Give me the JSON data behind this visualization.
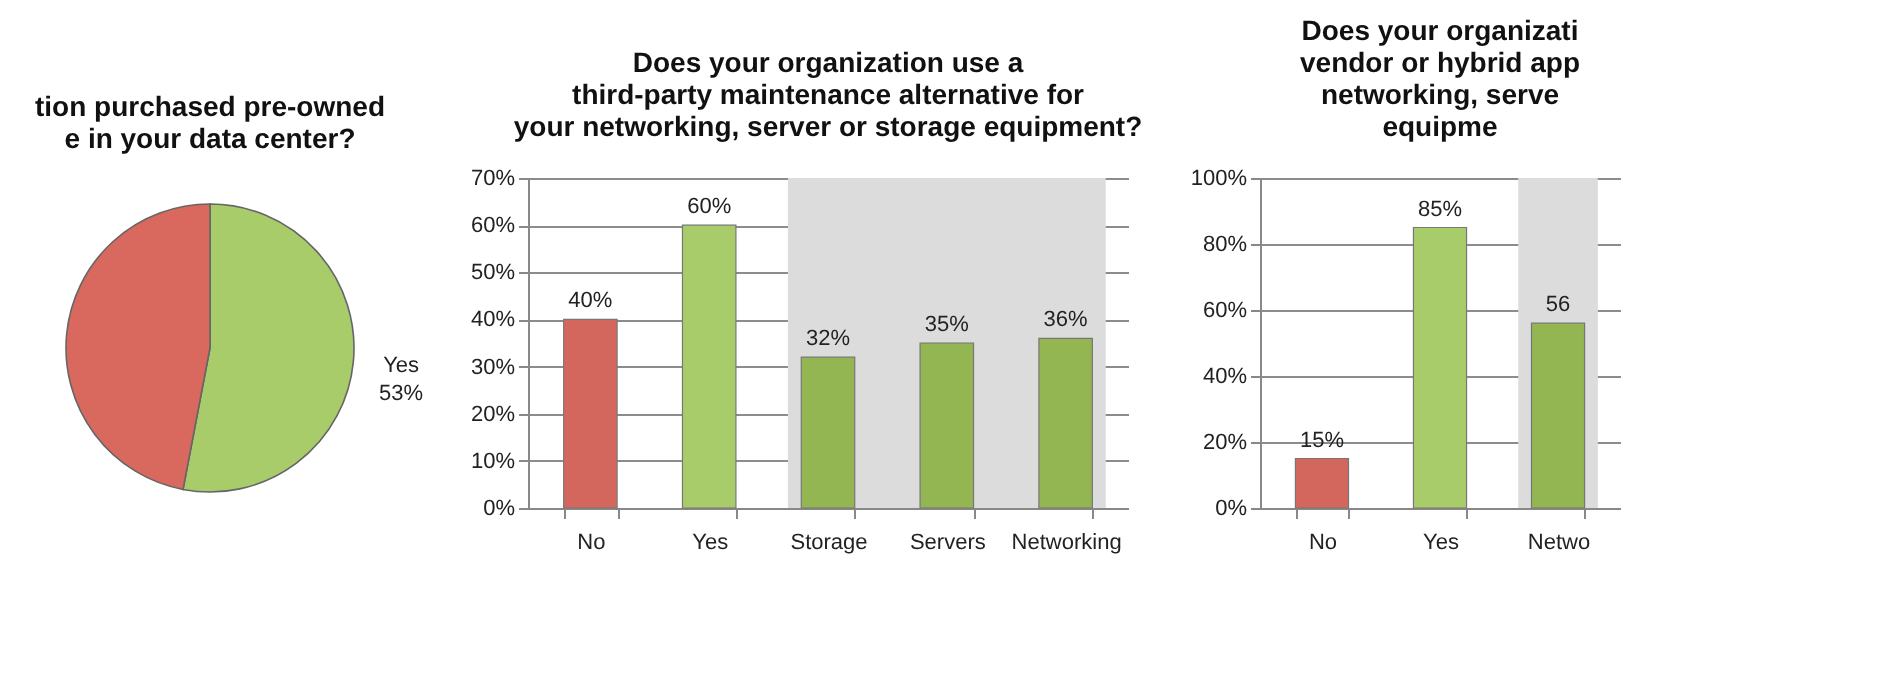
{
  "chart_data": [
    {
      "type": "pie",
      "title": [
        "tion purchased pre-owned",
        "e in your data center?"
      ],
      "categories": [
        "Yes",
        null
      ],
      "values": [
        53,
        47
      ],
      "colors": [
        "#a9cc6b",
        "#d9685f"
      ],
      "value_labels": [
        "53%",
        null
      ]
    },
    {
      "type": "bar",
      "title": [
        "Does your organization use a",
        "third-party maintenance alternative for",
        "your networking, server or storage equipment?"
      ],
      "categories": [
        "No",
        "Yes",
        "Storage",
        "Servers",
        "Networking"
      ],
      "values": [
        40,
        60,
        32,
        35,
        36
      ],
      "colors": [
        "#d4675d",
        "#a9cc6b",
        "#93b552",
        "#93b552",
        "#93b552"
      ],
      "value_labels": [
        "40%",
        "60%",
        "32%",
        "35%",
        "36%"
      ],
      "ylim": [
        0,
        70
      ],
      "yticks": [
        {
          "value": 0,
          "label": "0%"
        },
        {
          "value": 10,
          "label": "10%"
        },
        {
          "value": 20,
          "label": "20%"
        },
        {
          "value": 30,
          "label": "30%"
        },
        {
          "value": 40,
          "label": "40%"
        },
        {
          "value": 50,
          "label": "50%"
        },
        {
          "value": 60,
          "label": "60%"
        },
        {
          "value": 70,
          "label": "70%"
        }
      ],
      "grid": "y",
      "bands": [
        {
          "axis": "x",
          "from": "Storage",
          "to": "Networking",
          "color": "#dcdcdc"
        }
      ]
    },
    {
      "type": "bar",
      "title": [
        "Does your organizati",
        "vendor or hybrid app",
        "networking, serve",
        "equipme"
      ],
      "categories": [
        "No",
        "Yes",
        "Netwo"
      ],
      "values": [
        15,
        85,
        56
      ],
      "colors": [
        "#d4675d",
        "#a9cc6b",
        "#93b552"
      ],
      "value_labels": [
        "15%",
        "85%",
        "56"
      ],
      "ylim": [
        0,
        100
      ],
      "yticks": [
        {
          "value": 0,
          "label": "0%"
        },
        {
          "value": 20,
          "label": "20%"
        },
        {
          "value": 40,
          "label": "40%"
        },
        {
          "value": 60,
          "label": "60%"
        },
        {
          "value": 80,
          "label": "80%"
        },
        {
          "value": 100,
          "label": "100%"
        }
      ],
      "grid": "y",
      "bands": [
        {
          "axis": "x",
          "from": "Netwo",
          "to": "Netwo",
          "color": "#dcdcdc"
        }
      ]
    }
  ]
}
